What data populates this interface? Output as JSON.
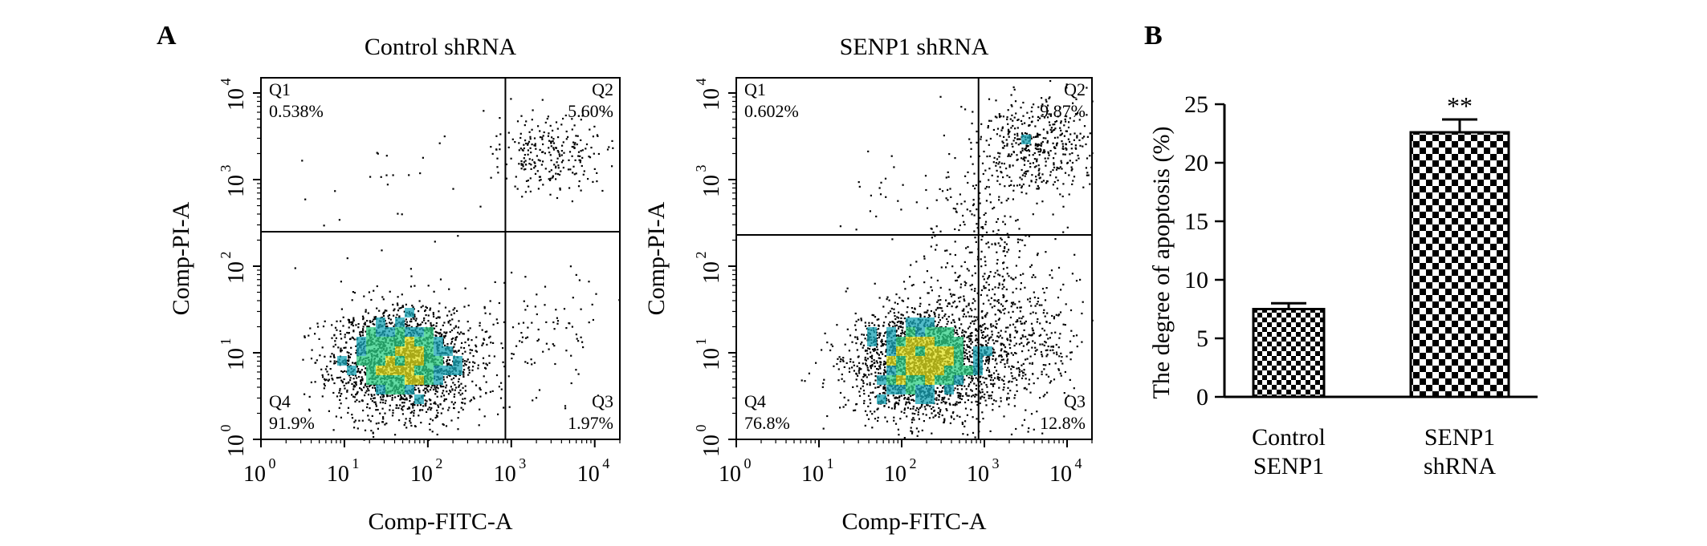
{
  "panel_labels": [
    "A",
    "B"
  ],
  "chart_data": [
    {
      "type": "scatter",
      "title": "Control shRNA",
      "xlabel": "Comp-FITC-A",
      "ylabel": "Comp-PI-A",
      "x_scale": "log",
      "y_scale": "log",
      "xlim": [
        1,
        20000
      ],
      "ylim": [
        1,
        15000
      ],
      "x_ticks": [
        1,
        10,
        100,
        1000,
        10000
      ],
      "y_ticks": [
        1,
        10,
        100,
        1000,
        10000
      ],
      "x_tick_labels": [
        "10",
        "10",
        "10",
        "10",
        "10"
      ],
      "x_tick_exponents": [
        "0",
        "1",
        "2",
        "3",
        "4"
      ],
      "y_tick_labels": [
        "10",
        "10",
        "10",
        "10",
        "10"
      ],
      "y_tick_exponents": [
        "0",
        "1",
        "2",
        "3",
        "4"
      ],
      "gate": {
        "x": 850,
        "y": 250
      },
      "quadrants": [
        {
          "name": "Q1",
          "percent": "0.538%"
        },
        {
          "name": "Q2",
          "percent": "5.60%"
        },
        {
          "name": "Q3",
          "percent": "1.97%"
        },
        {
          "name": "Q4",
          "percent": "91.9%"
        }
      ],
      "populations": [
        {
          "center": [
            50,
            8
          ],
          "spread": [
            0.42,
            0.32
          ],
          "count": 2300
        },
        {
          "center": [
            3000,
            2000
          ],
          "spread": [
            0.35,
            0.22
          ],
          "count": 260
        },
        {
          "center": [
            2500,
            20
          ],
          "spread": [
            0.35,
            0.35
          ],
          "count": 90
        },
        {
          "center": [
            40,
            700
          ],
          "spread": [
            0.45,
            0.35
          ],
          "count": 25
        }
      ]
    },
    {
      "type": "scatter",
      "title": "SENP1 shRNA",
      "xlabel": "Comp-FITC-A",
      "ylabel": "Comp-PI-A",
      "x_scale": "log",
      "y_scale": "log",
      "xlim": [
        1,
        20000
      ],
      "ylim": [
        1,
        15000
      ],
      "x_ticks": [
        1,
        10,
        100,
        1000,
        10000
      ],
      "y_ticks": [
        1,
        10,
        100,
        1000,
        10000
      ],
      "x_tick_labels": [
        "10",
        "10",
        "10",
        "10",
        "10"
      ],
      "x_tick_exponents": [
        "0",
        "1",
        "2",
        "3",
        "4"
      ],
      "y_tick_labels": [
        "10",
        "10",
        "10",
        "10",
        "10"
      ],
      "y_tick_exponents": [
        "0",
        "1",
        "2",
        "3",
        "4"
      ],
      "gate": {
        "x": 850,
        "y": 230
      },
      "quadrants": [
        {
          "name": "Q1",
          "percent": "0.602%"
        },
        {
          "name": "Q2",
          "percent": "9.87%"
        },
        {
          "name": "Q3",
          "percent": "12.8%"
        },
        {
          "name": "Q4",
          "percent": "76.8%"
        }
      ],
      "populations": [
        {
          "center": [
            180,
            8
          ],
          "spread": [
            0.45,
            0.32
          ],
          "count": 2400
        },
        {
          "center": [
            4000,
            2500
          ],
          "spread": [
            0.38,
            0.28
          ],
          "count": 480
        },
        {
          "center": [
            2500,
            15
          ],
          "spread": [
            0.45,
            0.38
          ],
          "count": 420
        },
        {
          "center": [
            900,
            200
          ],
          "spread": [
            0.4,
            0.5
          ],
          "count": 260
        },
        {
          "center": [
            60,
            600
          ],
          "spread": [
            0.4,
            0.3
          ],
          "count": 20
        }
      ]
    },
    {
      "type": "bar",
      "ylabel": "The degree of apoptosis (%)",
      "categories": [
        [
          "Control",
          "SENP1"
        ],
        [
          "SENP1",
          "shRNA"
        ]
      ],
      "values": [
        7.5,
        22.6
      ],
      "errors": [
        0.5,
        1.1
      ],
      "annotations": [
        "",
        "**"
      ],
      "ylim": [
        0,
        25
      ],
      "y_ticks": [
        0,
        5,
        10,
        15,
        20,
        25
      ],
      "bar_fill": "checkerboard",
      "colors": {
        "bar_dark": "#000000",
        "bar_light": "#ffffff"
      }
    }
  ],
  "colors": {
    "dot": "#000000",
    "density_low": "#1aa6b7",
    "density_mid": "#2fcf85",
    "density_high": "#e0e020"
  }
}
